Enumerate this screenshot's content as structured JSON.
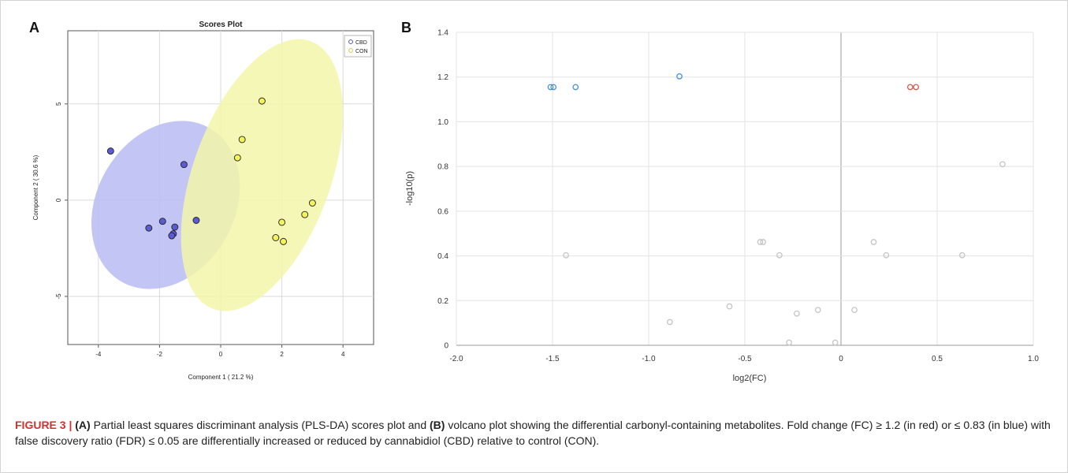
{
  "caption": {
    "label": "FIGURE 3 |",
    "part_a_tag": "(A)",
    "part_a_text": " Partial least squares discriminant analysis (PLS-DA) scores plot and ",
    "part_b_tag": "(B)",
    "part_b_text": " volcano plot showing the differential carbonyl-containing metabolites. Fold change (FC) ≥ 1.2 (in red) or ≤ 0.83 (in blue) with false discovery ratio (FDR) ≤ 0.05 are differentially increased or reduced by cannabidiol (CBD) relative to control (CON)."
  },
  "colors": {
    "cbd_fill": "#5b5bd6",
    "cbd_ellipse": "#b9bcf3",
    "con_fill": "#f2f25a",
    "con_ellipse": "#f3f6a9",
    "up": "#e8504a",
    "down": "#4a90d9",
    "ns": "#c4c4c4"
  },
  "chart_data": [
    {
      "panel_label": "A",
      "type": "scatter",
      "title": "Scores Plot",
      "xlabel": "Component 1 ( 21.2 %)",
      "ylabel": "Component 2 ( 30.6 %)",
      "xlim": [
        -5,
        5
      ],
      "ylim": [
        -7.5,
        8.8
      ],
      "xticks": [
        -4,
        -2,
        0,
        2,
        4
      ],
      "yticks": [
        -5,
        0,
        5
      ],
      "grid": true,
      "legend": "top-right",
      "series": [
        {
          "name": "CBD",
          "points": [
            [
              -3.6,
              2.55
            ],
            [
              -1.2,
              1.85
            ],
            [
              -1.9,
              -1.1
            ],
            [
              -0.8,
              -1.05
            ],
            [
              -2.35,
              -1.45
            ],
            [
              -1.5,
              -1.4
            ],
            [
              -1.55,
              -1.75
            ],
            [
              -1.6,
              -1.85
            ]
          ],
          "ellipse": {
            "center": [
              -1.8,
              -0.25
            ],
            "rx": 2.25,
            "ry": 4.6,
            "rotation_deg": 30
          }
        },
        {
          "name": "CON",
          "points": [
            [
              1.35,
              5.15
            ],
            [
              0.7,
              3.15
            ],
            [
              0.55,
              2.2
            ],
            [
              3.0,
              -0.15
            ],
            [
              2.75,
              -0.75
            ],
            [
              2.0,
              -1.15
            ],
            [
              1.8,
              -1.95
            ],
            [
              2.05,
              -2.15
            ]
          ],
          "ellipse": {
            "center": [
              1.35,
              1.3
            ],
            "rx": 2.25,
            "ry": 7.4,
            "rotation_deg": 20
          }
        }
      ]
    },
    {
      "panel_label": "B",
      "type": "scatter",
      "title": "",
      "xlabel": "log2(FC)",
      "ylabel": "-log10(p)",
      "xlim": [
        -2.0,
        1.0
      ],
      "ylim": [
        0,
        1.4
      ],
      "xticks": [
        -2.0,
        -1.5,
        -1.0,
        -0.5,
        0,
        0.5,
        1.0
      ],
      "xtick_labels": [
        "-2.0",
        "-1.5",
        "-1.0",
        "-0.5",
        "0",
        "0.5",
        "1.0"
      ],
      "yticks": [
        0,
        0.2,
        0.4,
        0.6,
        0.8,
        1.0,
        1.2,
        1.4
      ],
      "ytick_labels": [
        "0",
        "0.2",
        "0.4",
        "0.6",
        "0.8",
        "1.0",
        "1.2",
        "1.4"
      ],
      "grid": true,
      "series": [
        {
          "group": "down",
          "points": [
            [
              -1.51,
              1.155
            ],
            [
              -1.495,
              1.155
            ],
            [
              -1.38,
              1.155
            ],
            [
              -0.84,
              1.203
            ]
          ]
        },
        {
          "group": "up",
          "points": [
            [
              0.36,
              1.155
            ],
            [
              0.39,
              1.155
            ]
          ]
        },
        {
          "group": "ns",
          "points": [
            [
              -1.43,
              0.403
            ],
            [
              -0.89,
              0.104
            ],
            [
              -0.58,
              0.174
            ],
            [
              -0.42,
              0.462
            ],
            [
              -0.405,
              0.462
            ],
            [
              -0.32,
              0.403
            ],
            [
              -0.27,
              0.012
            ],
            [
              -0.23,
              0.142
            ],
            [
              -0.12,
              0.158
            ],
            [
              -0.03,
              0.012
            ],
            [
              0.07,
              0.158
            ],
            [
              0.17,
              0.462
            ],
            [
              0.235,
              0.403
            ],
            [
              0.63,
              0.403
            ],
            [
              0.84,
              0.81
            ]
          ]
        }
      ]
    }
  ]
}
